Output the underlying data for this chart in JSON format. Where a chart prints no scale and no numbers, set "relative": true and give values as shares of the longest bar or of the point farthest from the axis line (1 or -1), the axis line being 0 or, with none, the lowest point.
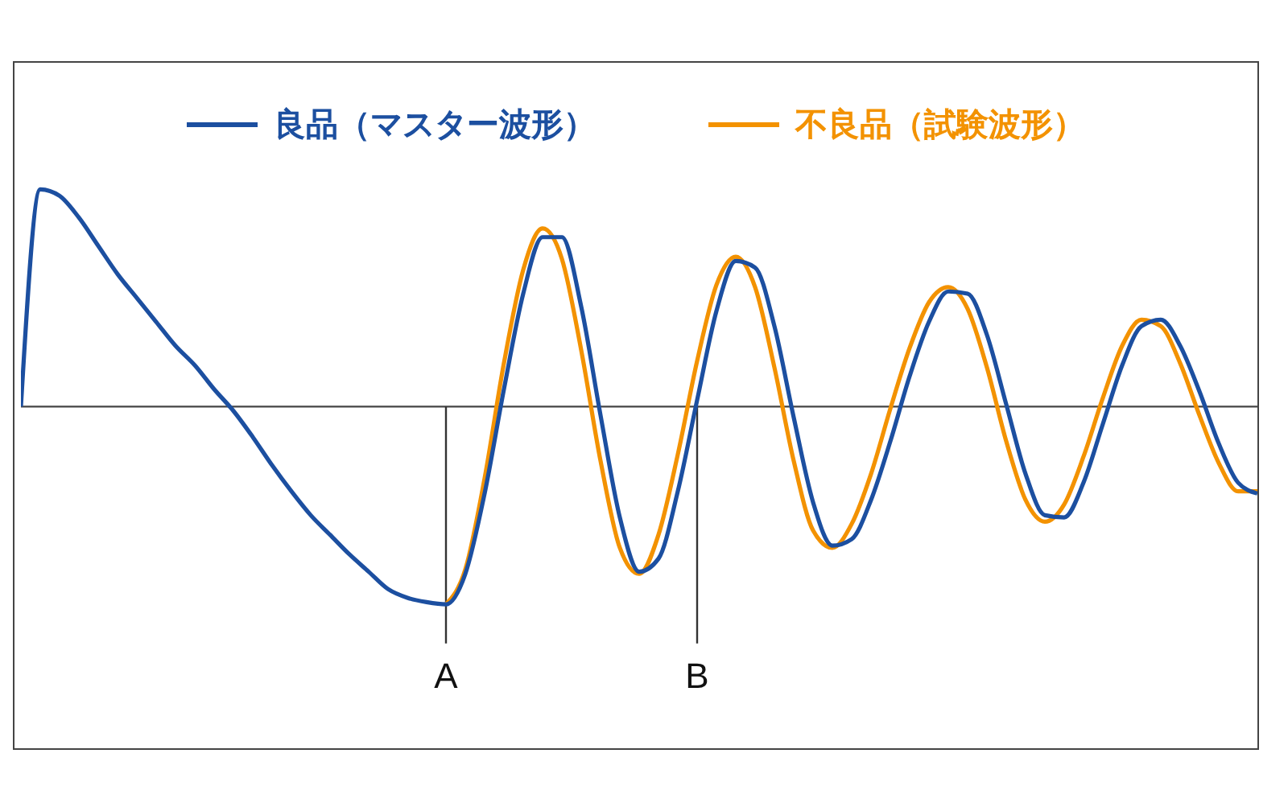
{
  "chart_data": {
    "type": "line",
    "relative": true,
    "categories": [
      null,
      null,
      null,
      null,
      null,
      null,
      null,
      null,
      null,
      null,
      null,
      null,
      null,
      null,
      null,
      null,
      null,
      null,
      null,
      null,
      null,
      null,
      null,
      null,
      null,
      null,
      null,
      null,
      null,
      null,
      null,
      null,
      null,
      null,
      null,
      null,
      null,
      null,
      null,
      null,
      null,
      null,
      null,
      null,
      null,
      null,
      null,
      null,
      null,
      null,
      null,
      null,
      null,
      null,
      null,
      null,
      null,
      null,
      null,
      null,
      null,
      null,
      null,
      null,
      null
    ],
    "series": [
      {
        "name": "良品（マスター波形）",
        "color": "#1c4fa0",
        "values": [
          0,
          1.0,
          0.97,
          0.87,
          0.74,
          0.61,
          0.5,
          0.39,
          0.28,
          0.19,
          0.08,
          -0.02,
          -0.14,
          -0.27,
          -0.39,
          -0.5,
          -0.59,
          -0.68,
          -0.76,
          -0.84,
          -0.88,
          -0.9,
          -0.91,
          -0.77,
          -0.4,
          0.08,
          0.52,
          0.78,
          0.78,
          0.46,
          -0.04,
          -0.51,
          -0.76,
          -0.7,
          -0.39,
          0.03,
          0.44,
          0.67,
          0.64,
          0.37,
          -0.05,
          -0.44,
          -0.64,
          -0.61,
          -0.43,
          -0.16,
          0.14,
          0.39,
          0.53,
          0.52,
          0.33,
          0.01,
          -0.31,
          -0.5,
          -0.51,
          -0.35,
          -0.08,
          0.19,
          0.37,
          0.4,
          0.28,
          0.07,
          -0.17,
          -0.35,
          -0.4
        ]
      },
      {
        "name": "不良品（試験波形）",
        "color": "#f39200",
        "values": [
          null,
          null,
          null,
          null,
          null,
          null,
          null,
          null,
          null,
          null,
          null,
          null,
          null,
          null,
          null,
          null,
          null,
          null,
          null,
          null,
          null,
          null,
          -0.91,
          -0.75,
          -0.33,
          0.2,
          0.63,
          0.82,
          0.68,
          0.26,
          -0.25,
          -0.65,
          -0.77,
          -0.59,
          -0.22,
          0.21,
          0.56,
          0.69,
          0.55,
          0.18,
          -0.25,
          -0.57,
          -0.65,
          -0.54,
          -0.31,
          -0.01,
          0.27,
          0.48,
          0.55,
          0.45,
          0.18,
          -0.16,
          -0.43,
          -0.53,
          -0.45,
          -0.23,
          0.04,
          0.28,
          0.4,
          0.37,
          0.2,
          -0.04,
          -0.26,
          -0.39,
          -0.39
        ]
      }
    ],
    "annotations": [
      "A",
      "B"
    ],
    "legend": "top",
    "grid": false,
    "marker": "none",
    "line_style": "solid"
  }
}
